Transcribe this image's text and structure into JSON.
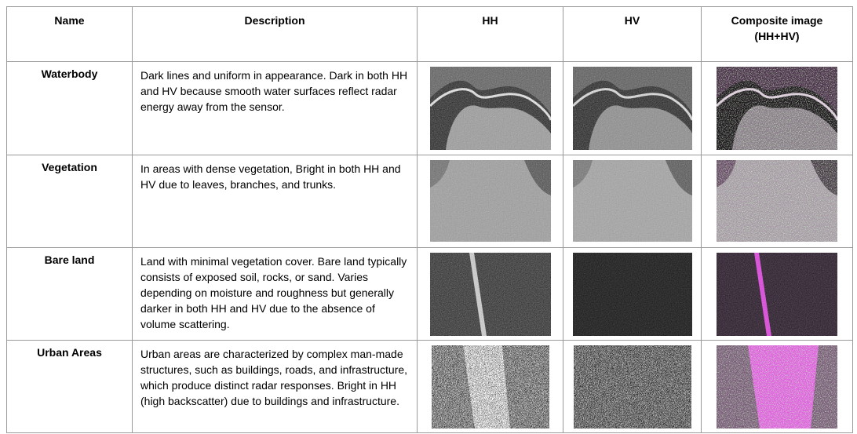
{
  "headers": {
    "name": "Name",
    "description": "Description",
    "hh": "HH",
    "hv": "HV",
    "composite_line1": "Composite image",
    "composite_line2": "(HH+HV)"
  },
  "rows": [
    {
      "name": "Waterbody",
      "description": "Dark lines and uniform in appearance. Dark in both HH and HV because smooth water surfaces reflect radar energy away from the sensor.",
      "images": {
        "hh": "waterbody-hh-sar-image",
        "hv": "waterbody-hv-sar-image",
        "composite": "waterbody-composite-image"
      }
    },
    {
      "name": "Vegetation",
      "description": "In areas with dense vegetation, Bright in both HH and HV due to leaves, branches, and trunks.",
      "images": {
        "hh": "vegetation-hh-sar-image",
        "hv": "vegetation-hv-sar-image",
        "composite": "vegetation-composite-image"
      }
    },
    {
      "name": "Bare land",
      "description": " Land with minimal vegetation cover. Bare land typically consists of exposed soil, rocks, or sand. Varies depending on moisture and roughness but generally darker in both HH and HV due to the absence of volume scattering.",
      "images": {
        "hh": "bare-land-hh-sar-image",
        "hv": "bare-land-hv-sar-image",
        "composite": "bare-land-composite-image"
      }
    },
    {
      "name": "Urban Areas",
      "description": "Urban areas are characterized by complex man-made structures, such as buildings, roads, and infrastructure, which produce distinct radar responses. Bright in HH (high backscatter) due to buildings and infrastructure.",
      "images": {
        "hh": "urban-hh-sar-image",
        "hv": "urban-hv-sar-image",
        "composite": "urban-composite-image"
      }
    }
  ],
  "colors": {
    "border": "#9a9a9a",
    "composite_magenta": "#c040c0",
    "composite_green": "#9be08a"
  }
}
